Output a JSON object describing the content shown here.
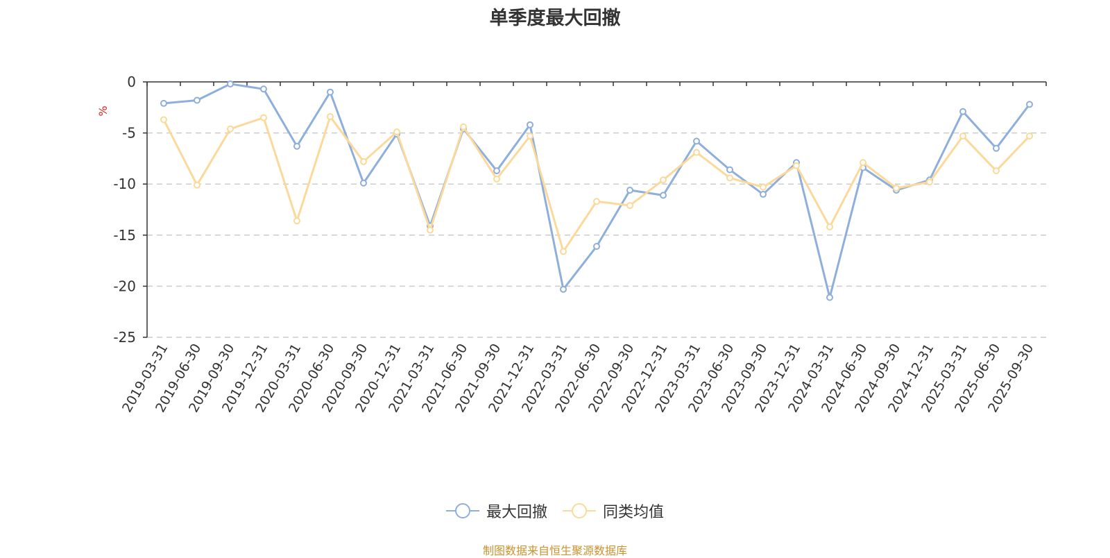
{
  "title": "单季度最大回撤",
  "source_note": "制图数据来自恒生聚源数据库",
  "chart_data": {
    "type": "line",
    "title": "单季度最大回撤",
    "ylabel": "%",
    "xlabel": "",
    "ylim": [
      -25,
      0
    ],
    "yticks": [
      0,
      -5,
      -10,
      -15,
      -20,
      -25
    ],
    "grid": true,
    "legend_position": "bottom",
    "categories": [
      "2019-03-31",
      "2019-06-30",
      "2019-09-30",
      "2019-12-31",
      "2020-03-31",
      "2020-06-30",
      "2020-09-30",
      "2020-12-31",
      "2021-03-31",
      "2021-06-30",
      "2021-09-30",
      "2021-12-31",
      "2022-03-31",
      "2022-06-30",
      "2022-09-30",
      "2022-12-31",
      "2023-03-31",
      "2023-06-30",
      "2023-09-30",
      "2023-12-31",
      "2024-03-31",
      "2024-06-30",
      "2024-09-30",
      "2024-12-31",
      "2025-03-31",
      "2025-06-30",
      "2025-09-30"
    ],
    "series": [
      {
        "name": "最大回撤",
        "color": "#8eaedc",
        "values": [
          -2.1,
          -1.8,
          -0.2,
          -0.7,
          -6.3,
          -1.0,
          -9.9,
          -5.1,
          -14.1,
          -4.6,
          -8.7,
          -4.2,
          -20.3,
          -16.1,
          -10.6,
          -11.1,
          -5.8,
          -8.6,
          -11.0,
          -7.9,
          -21.1,
          -8.4,
          -10.6,
          -9.6,
          -2.9,
          -6.5,
          -2.2
        ]
      },
      {
        "name": "同类均值",
        "color": "#fbd99a",
        "values": [
          -3.7,
          -10.1,
          -4.6,
          -3.5,
          -13.6,
          -3.4,
          -7.8,
          -4.9,
          -14.5,
          -4.4,
          -9.5,
          -5.3,
          -16.6,
          -11.7,
          -12.1,
          -9.6,
          -6.9,
          -9.4,
          -10.3,
          -8.2,
          -14.2,
          -7.9,
          -10.4,
          -9.8,
          -5.3,
          -8.7,
          -5.3
        ]
      }
    ]
  }
}
